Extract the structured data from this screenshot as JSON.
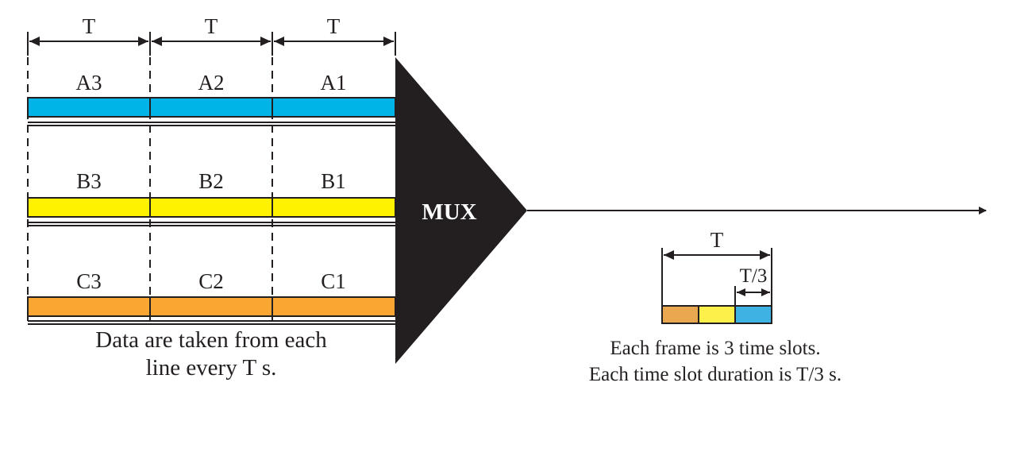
{
  "colors": {
    "line_a": "#00b4e8",
    "line_b": "#fff200",
    "line_c": "#faa633",
    "frame_c": "#e9a84f",
    "frame_b": "#fdf04a",
    "frame_a": "#3fb2e4",
    "mux_fill": "#231f20",
    "ink": "#231f20"
  },
  "input_period_labels": [
    "T",
    "T",
    "T"
  ],
  "lines": [
    {
      "name": "A",
      "slots": [
        "A3",
        "A2",
        "A1"
      ],
      "color_key": "line_a"
    },
    {
      "name": "B",
      "slots": [
        "B3",
        "B2",
        "B1"
      ],
      "color_key": "line_b"
    },
    {
      "name": "C",
      "slots": [
        "C3",
        "C2",
        "C1"
      ],
      "color_key": "line_c"
    }
  ],
  "mux": {
    "label": "MUX"
  },
  "left_caption": {
    "line1": "Data are taken from each",
    "line2": "line every T s."
  },
  "frame": {
    "frame_label": "T",
    "slot_label": "T/3",
    "slot_count": 3
  },
  "right_caption": {
    "line1": "Each frame is 3 time slots.",
    "line2": "Each time slot duration is T/3 s."
  }
}
